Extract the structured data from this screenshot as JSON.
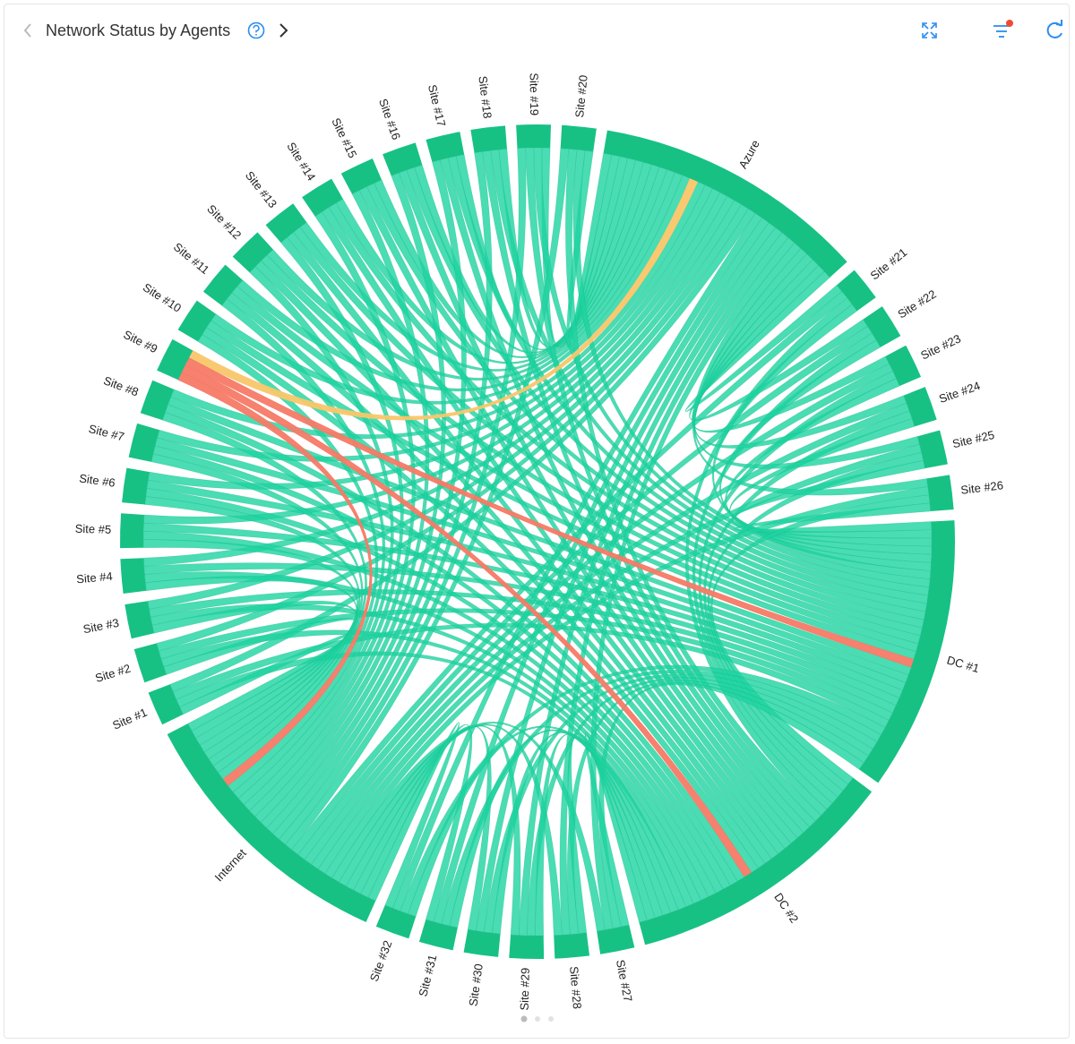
{
  "chart_data": {
    "type": "chord",
    "title": "Network Status by Agents",
    "nodes": [
      "Site #1",
      "Site #2",
      "Site #3",
      "Site #4",
      "Site #5",
      "Site #6",
      "Site #7",
      "Site #8",
      "Site #9",
      "Site #10",
      "Site #11",
      "Site #12",
      "Site #13",
      "Site #14",
      "Site #15",
      "Site #16",
      "Site #17",
      "Site #18",
      "Site #19",
      "Site #20",
      "Azure",
      "Site #21",
      "Site #22",
      "Site #23",
      "Site #24",
      "Site #25",
      "Site #26",
      "DC #1",
      "DC #2",
      "Site #27",
      "Site #28",
      "Site #29",
      "Site #30",
      "Site #31",
      "Site #32",
      "Internet"
    ],
    "node_color": "#17c184",
    "link_color": "#1dd3a0",
    "links": [
      {
        "source": "Site #1",
        "targets": [
          "Azure",
          "DC #1",
          "DC #2",
          "Internet"
        ]
      },
      {
        "source": "Site #2",
        "targets": [
          "Azure",
          "DC #1",
          "DC #2",
          "Internet"
        ]
      },
      {
        "source": "Site #3",
        "targets": [
          "Azure",
          "DC #1",
          "DC #2",
          "Internet"
        ]
      },
      {
        "source": "Site #4",
        "targets": [
          "Azure",
          "DC #1",
          "DC #2",
          "Internet"
        ]
      },
      {
        "source": "Site #5",
        "targets": [
          "Azure",
          "DC #1",
          "DC #2",
          "Internet"
        ]
      },
      {
        "source": "Site #6",
        "targets": [
          "Azure",
          "DC #1",
          "DC #2",
          "Internet"
        ]
      },
      {
        "source": "Site #7",
        "targets": [
          "Azure",
          "DC #1",
          "DC #2",
          "Internet"
        ]
      },
      {
        "source": "Site #8",
        "targets": [
          "Azure",
          "DC #1",
          "DC #2",
          "Internet"
        ]
      },
      {
        "source": "Site #9",
        "targets": [
          "Azure",
          "DC #1",
          "DC #2",
          "Internet"
        ],
        "colors": [
          "#f9c66a",
          "#f57a66",
          "#f57a66",
          "#f57a66"
        ]
      },
      {
        "source": "Site #10",
        "targets": [
          "Azure",
          "DC #1",
          "DC #2",
          "Internet"
        ]
      },
      {
        "source": "Site #11",
        "targets": [
          "Azure",
          "DC #1",
          "DC #2",
          "Internet"
        ]
      },
      {
        "source": "Site #12",
        "targets": [
          "Azure",
          "DC #1",
          "DC #2",
          "Internet"
        ]
      },
      {
        "source": "Site #13",
        "targets": [
          "Azure",
          "DC #1",
          "DC #2",
          "Internet"
        ]
      },
      {
        "source": "Site #14",
        "targets": [
          "Azure",
          "DC #1",
          "DC #2",
          "Internet"
        ]
      },
      {
        "source": "Site #15",
        "targets": [
          "Azure",
          "DC #1",
          "DC #2",
          "Internet"
        ]
      },
      {
        "source": "Site #16",
        "targets": [
          "Azure",
          "DC #1",
          "DC #2",
          "Internet"
        ]
      },
      {
        "source": "Site #17",
        "targets": [
          "Azure",
          "DC #1",
          "DC #2",
          "Internet"
        ]
      },
      {
        "source": "Site #18",
        "targets": [
          "Azure",
          "DC #1",
          "DC #2",
          "Internet"
        ]
      },
      {
        "source": "Site #19",
        "targets": [
          "Azure",
          "DC #1",
          "DC #2",
          "Internet"
        ]
      },
      {
        "source": "Site #20",
        "targets": [
          "Azure",
          "DC #1",
          "DC #2",
          "Internet"
        ]
      },
      {
        "source": "Site #21",
        "targets": [
          "Azure",
          "DC #1",
          "DC #2",
          "Internet"
        ]
      },
      {
        "source": "Site #22",
        "targets": [
          "Azure",
          "DC #1",
          "DC #2",
          "Internet"
        ]
      },
      {
        "source": "Site #23",
        "targets": [
          "Azure",
          "DC #1",
          "DC #2",
          "Internet"
        ]
      },
      {
        "source": "Site #24",
        "targets": [
          "Azure",
          "DC #1",
          "DC #2",
          "Internet"
        ]
      },
      {
        "source": "Site #25",
        "targets": [
          "Azure",
          "DC #1",
          "DC #2",
          "Internet"
        ]
      },
      {
        "source": "Site #26",
        "targets": [
          "Azure",
          "DC #1",
          "DC #2",
          "Internet"
        ]
      },
      {
        "source": "Site #27",
        "targets": [
          "Azure",
          "DC #1",
          "DC #2",
          "Internet"
        ]
      },
      {
        "source": "Site #28",
        "targets": [
          "Azure",
          "DC #1",
          "DC #2",
          "Internet"
        ]
      },
      {
        "source": "Site #29",
        "targets": [
          "Azure",
          "DC #1",
          "DC #2",
          "Internet"
        ]
      },
      {
        "source": "Site #30",
        "targets": [
          "Azure",
          "DC #1",
          "DC #2",
          "Internet"
        ]
      },
      {
        "source": "Site #31",
        "targets": [
          "Azure",
          "DC #1",
          "DC #2",
          "Internet"
        ]
      },
      {
        "source": "Site #32",
        "targets": [
          "Azure",
          "DC #1",
          "DC #2",
          "Internet"
        ]
      }
    ]
  }
}
